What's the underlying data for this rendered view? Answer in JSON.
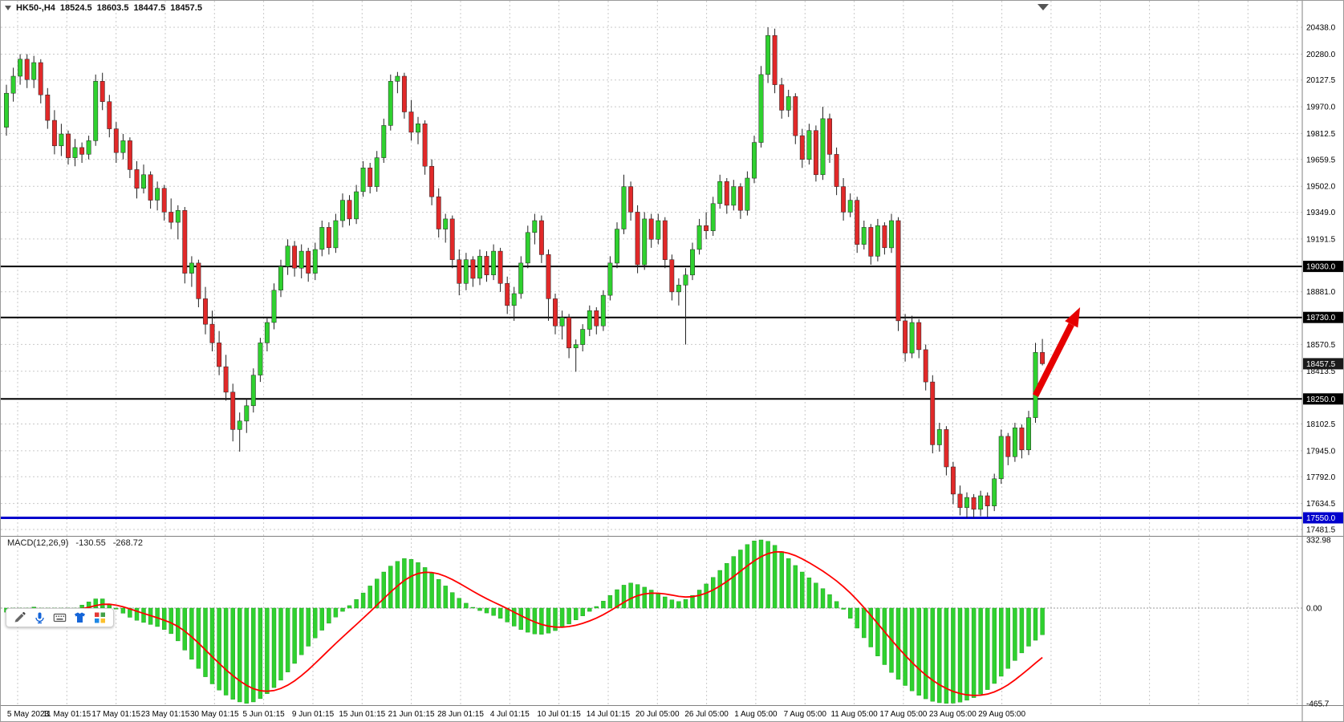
{
  "header": {
    "symbol": "HK50-,H4",
    "open": "18524.5",
    "high": "18603.5",
    "low": "18447.5",
    "close": "18457.5"
  },
  "macd_panel": {
    "label": "MACD(12,26,9)",
    "macd_value": "-130.55",
    "signal_value": "-268.72"
  },
  "toolbar": {
    "icons": [
      "pen-icon",
      "microphone-icon",
      "keyboard-icon",
      "shirt-icon",
      "apps-grid-icon"
    ]
  },
  "chart_data": {
    "type": "candlestick",
    "title": "HK50-,H4",
    "timeframe": "H4",
    "colors": {
      "up": "#2fd12f",
      "down": "#e12929",
      "macd_histogram": "#2fd12f",
      "macd_signal": "#ff0000",
      "level_black": "#000000",
      "level_blue": "#0000cc",
      "arrow": "#e60000",
      "grid": "#c9c9c9"
    },
    "price_axis": {
      "gridlines": [
        20438.0,
        20280.0,
        20127.5,
        19970.0,
        19812.5,
        19659.5,
        19502.0,
        19349.0,
        19191.5,
        18881.0,
        18570.5,
        18413.5,
        18102.5,
        17945.0,
        17792.0,
        17634.5,
        17481.5
      ],
      "tags": [
        {
          "value": 19030.0,
          "color": "#000000"
        },
        {
          "value": 18730.0,
          "color": "#000000"
        },
        {
          "value": 18457.5,
          "color": "#1a1a1a"
        },
        {
          "value": 18250.0,
          "color": "#000000"
        },
        {
          "value": 17550.0,
          "color": "#0000cc"
        }
      ]
    },
    "levels": [
      {
        "price": 19030,
        "color": "#000000",
        "width": 2
      },
      {
        "price": 18730,
        "color": "#000000",
        "width": 2
      },
      {
        "price": 18250,
        "color": "#000000",
        "width": 2
      },
      {
        "price": 17550,
        "color": "#0000cc",
        "width": 3
      }
    ],
    "x_labels": [
      "5 May 2023",
      "11 May 01:15",
      "17 May 01:15",
      "23 May 01:15",
      "30 May 01:15",
      "5 Jun 01:15",
      "9 Jun 01:15",
      "15 Jun 01:15",
      "21 Jun 01:15",
      "28 Jun 01:15",
      "4 Jul 01:15",
      "10 Jul 01:15",
      "14 Jul 01:15",
      "20 Jul 05:00",
      "26 Jul 05:00",
      "1 Aug 05:00",
      "7 Aug 05:00",
      "11 Aug 05:00",
      "17 Aug 05:00",
      "23 Aug 05:00",
      "29 Aug 05:00"
    ],
    "candles": [
      [
        19850,
        20100,
        19800,
        20050
      ],
      [
        20050,
        20200,
        20000,
        20150
      ],
      [
        20150,
        20280,
        20100,
        20250
      ],
      [
        20250,
        20280,
        20080,
        20130
      ],
      [
        20130,
        20270,
        20080,
        20230
      ],
      [
        20230,
        20250,
        19990,
        20040
      ],
      [
        20040,
        20080,
        19840,
        19890
      ],
      [
        19890,
        19950,
        19690,
        19740
      ],
      [
        19740,
        19870,
        19680,
        19810
      ],
      [
        19810,
        19830,
        19630,
        19670
      ],
      [
        19670,
        19780,
        19620,
        19730
      ],
      [
        19730,
        19760,
        19640,
        19690
      ],
      [
        19690,
        19800,
        19660,
        19770
      ],
      [
        19770,
        20160,
        19740,
        20120
      ],
      [
        20120,
        20170,
        19950,
        20000
      ],
      [
        20000,
        20040,
        19790,
        19840
      ],
      [
        19840,
        19880,
        19640,
        19700
      ],
      [
        19700,
        19810,
        19660,
        19770
      ],
      [
        19770,
        19790,
        19550,
        19600
      ],
      [
        19600,
        19650,
        19430,
        19490
      ],
      [
        19490,
        19630,
        19460,
        19570
      ],
      [
        19570,
        19590,
        19370,
        19420
      ],
      [
        19420,
        19530,
        19360,
        19490
      ],
      [
        19490,
        19510,
        19300,
        19350
      ],
      [
        19350,
        19430,
        19250,
        19290
      ],
      [
        19290,
        19390,
        19190,
        19360
      ],
      [
        19360,
        19380,
        18930,
        18990
      ],
      [
        18990,
        19090,
        18910,
        19050
      ],
      [
        19050,
        19070,
        18790,
        18840
      ],
      [
        18840,
        18910,
        18630,
        18690
      ],
      [
        18690,
        18770,
        18530,
        18580
      ],
      [
        18580,
        18650,
        18390,
        18440
      ],
      [
        18440,
        18510,
        18240,
        18290
      ],
      [
        18290,
        18340,
        18000,
        18070
      ],
      [
        18070,
        18170,
        17940,
        18120
      ],
      [
        18120,
        18250,
        18050,
        18210
      ],
      [
        18210,
        18430,
        18170,
        18390
      ],
      [
        18390,
        18610,
        18350,
        18580
      ],
      [
        18580,
        18730,
        18530,
        18700
      ],
      [
        18700,
        18930,
        18660,
        18890
      ],
      [
        18890,
        19070,
        18850,
        19030
      ],
      [
        19030,
        19190,
        18980,
        19150
      ],
      [
        19150,
        19180,
        18970,
        19020
      ],
      [
        19020,
        19160,
        18960,
        19120
      ],
      [
        19120,
        19140,
        18940,
        18990
      ],
      [
        18990,
        19170,
        18950,
        19130
      ],
      [
        19130,
        19300,
        19090,
        19260
      ],
      [
        19260,
        19290,
        19100,
        19140
      ],
      [
        19140,
        19340,
        19110,
        19300
      ],
      [
        19300,
        19460,
        19260,
        19420
      ],
      [
        19420,
        19450,
        19270,
        19310
      ],
      [
        19310,
        19510,
        19280,
        19470
      ],
      [
        19470,
        19650,
        19440,
        19610
      ],
      [
        19610,
        19640,
        19460,
        19500
      ],
      [
        19500,
        19710,
        19470,
        19670
      ],
      [
        19670,
        19900,
        19640,
        19860
      ],
      [
        19860,
        20160,
        19830,
        20120
      ],
      [
        20120,
        20175,
        20050,
        20150
      ],
      [
        20150,
        20170,
        19900,
        19940
      ],
      [
        19940,
        20010,
        19770,
        19820
      ],
      [
        19820,
        19910,
        19750,
        19870
      ],
      [
        19870,
        19890,
        19570,
        19620
      ],
      [
        19620,
        19660,
        19390,
        19440
      ],
      [
        19440,
        19490,
        19200,
        19250
      ],
      [
        19250,
        19340,
        19170,
        19310
      ],
      [
        19310,
        19330,
        19020,
        19070
      ],
      [
        19070,
        19130,
        18860,
        18930
      ],
      [
        18930,
        19110,
        18890,
        19070
      ],
      [
        19070,
        19090,
        18910,
        18960
      ],
      [
        18960,
        19130,
        18920,
        19090
      ],
      [
        19090,
        19120,
        18940,
        18980
      ],
      [
        18980,
        19160,
        18950,
        19120
      ],
      [
        19120,
        19140,
        18880,
        18930
      ],
      [
        18930,
        18970,
        18750,
        18800
      ],
      [
        18800,
        18910,
        18710,
        18870
      ],
      [
        18870,
        19090,
        18840,
        19050
      ],
      [
        19050,
        19270,
        19020,
        19230
      ],
      [
        19230,
        19340,
        19160,
        19300
      ],
      [
        19300,
        19330,
        19050,
        19100
      ],
      [
        19100,
        19130,
        18710,
        18840
      ],
      [
        18840,
        18870,
        18630,
        18680
      ],
      [
        18680,
        18770,
        18600,
        18730
      ],
      [
        18730,
        18750,
        18490,
        18550
      ],
      [
        18550,
        18600,
        18410,
        18570
      ],
      [
        18570,
        18690,
        18530,
        18660
      ],
      [
        18660,
        18800,
        18620,
        18770
      ],
      [
        18770,
        18790,
        18630,
        18680
      ],
      [
        18680,
        18890,
        18650,
        18860
      ],
      [
        18860,
        19090,
        18830,
        19050
      ],
      [
        19050,
        19290,
        19020,
        19250
      ],
      [
        19250,
        19570,
        19220,
        19500
      ],
      [
        19500,
        19530,
        19300,
        19350
      ],
      [
        19350,
        19390,
        18990,
        19040
      ],
      [
        19040,
        19350,
        19010,
        19310
      ],
      [
        19310,
        19340,
        19140,
        19190
      ],
      [
        19190,
        19340,
        19160,
        19300
      ],
      [
        19300,
        19320,
        19020,
        19070
      ],
      [
        19070,
        19100,
        18830,
        18880
      ],
      [
        18880,
        18960,
        18800,
        18920
      ],
      [
        18920,
        19020,
        18570,
        18980
      ],
      [
        18980,
        19170,
        18950,
        19130
      ],
      [
        19130,
        19310,
        19100,
        19270
      ],
      [
        19270,
        19350,
        19190,
        19240
      ],
      [
        19240,
        19440,
        19210,
        19400
      ],
      [
        19400,
        19570,
        19370,
        19530
      ],
      [
        19530,
        19550,
        19340,
        19390
      ],
      [
        19390,
        19540,
        19360,
        19500
      ],
      [
        19500,
        19520,
        19310,
        19360
      ],
      [
        19360,
        19590,
        19330,
        19550
      ],
      [
        19550,
        19800,
        19520,
        19760
      ],
      [
        19760,
        20210,
        19730,
        20160
      ],
      [
        20160,
        20438,
        20110,
        20390
      ],
      [
        20390,
        20430,
        20050,
        20100
      ],
      [
        20100,
        20140,
        19900,
        19950
      ],
      [
        19950,
        20070,
        19910,
        20030
      ],
      [
        20030,
        20050,
        19750,
        19800
      ],
      [
        19800,
        19840,
        19610,
        19660
      ],
      [
        19660,
        19870,
        19630,
        19830
      ],
      [
        19830,
        19860,
        19530,
        19570
      ],
      [
        19570,
        19970,
        19540,
        19900
      ],
      [
        19900,
        19930,
        19640,
        19690
      ],
      [
        19690,
        19730,
        19450,
        19500
      ],
      [
        19500,
        19550,
        19300,
        19350
      ],
      [
        19350,
        19460,
        19320,
        19420
      ],
      [
        19420,
        19440,
        19110,
        19160
      ],
      [
        19160,
        19300,
        19130,
        19260
      ],
      [
        19260,
        19280,
        19040,
        19090
      ],
      [
        19090,
        19310,
        19060,
        19270
      ],
      [
        19270,
        19290,
        19100,
        19140
      ],
      [
        19140,
        19340,
        19110,
        19300
      ],
      [
        19300,
        19320,
        18650,
        18710
      ],
      [
        18710,
        18750,
        18470,
        18520
      ],
      [
        18520,
        18740,
        18490,
        18700
      ],
      [
        18700,
        18720,
        18490,
        18540
      ],
      [
        18540,
        18570,
        18300,
        18350
      ],
      [
        18350,
        18390,
        17930,
        17980
      ],
      [
        17980,
        18110,
        17940,
        18070
      ],
      [
        18070,
        18090,
        17800,
        17850
      ],
      [
        17850,
        17880,
        17630,
        17690
      ],
      [
        17690,
        17740,
        17565,
        17610
      ],
      [
        17610,
        17700,
        17550,
        17670
      ],
      [
        17670,
        17690,
        17551,
        17600
      ],
      [
        17600,
        17710,
        17560,
        17680
      ],
      [
        17680,
        17700,
        17555,
        17620
      ],
      [
        17620,
        17810,
        17590,
        17780
      ],
      [
        17780,
        18070,
        17750,
        18030
      ],
      [
        18030,
        18050,
        17860,
        17910
      ],
      [
        17910,
        18110,
        17880,
        18080
      ],
      [
        18080,
        18100,
        17900,
        17950
      ],
      [
        17950,
        18180,
        17920,
        18140
      ],
      [
        18140,
        18580,
        18110,
        18524
      ],
      [
        18524.5,
        18603.5,
        18447.5,
        18457.5
      ]
    ],
    "macd": {
      "params": "12,26,9",
      "macd_value": -130.55,
      "signal_value": -268.72,
      "axis_labels": [
        {
          "text": "332.98",
          "value": 332.98
        },
        {
          "text": "0.00",
          "value": 0
        },
        {
          "text": "-465.7",
          "value": -465.7
        }
      ],
      "histogram": [
        -20,
        -10,
        -5,
        0,
        5,
        0,
        -5,
        -10,
        -15,
        -10,
        0,
        15,
        30,
        45,
        45,
        20,
        -5,
        -25,
        -45,
        -60,
        -70,
        -80,
        -90,
        -105,
        -125,
        -160,
        -205,
        -250,
        -295,
        -335,
        -370,
        -400,
        -425,
        -445,
        -458,
        -465,
        -458,
        -442,
        -418,
        -388,
        -352,
        -312,
        -270,
        -228,
        -186,
        -146,
        -108,
        -74,
        -44,
        -16,
        12,
        42,
        74,
        108,
        142,
        176,
        205,
        228,
        242,
        238,
        222,
        198,
        170,
        140,
        108,
        76,
        48,
        24,
        4,
        -12,
        -24,
        -36,
        -50,
        -68,
        -88,
        -105,
        -118,
        -126,
        -128,
        -122,
        -110,
        -95,
        -78,
        -58,
        -38,
        -16,
        8,
        34,
        62,
        90,
        112,
        122,
        115,
        102,
        88,
        72,
        55,
        40,
        32,
        42,
        62,
        88,
        118,
        150,
        184,
        218,
        252,
        284,
        310,
        328,
        333,
        326,
        306,
        276,
        242,
        208,
        176,
        148,
        122,
        95,
        66,
        32,
        -6,
        -50,
        -98,
        -145,
        -190,
        -234,
        -276,
        -314,
        -348,
        -378,
        -404,
        -426,
        -443,
        -455,
        -462,
        -465,
        -464,
        -459,
        -450,
        -437,
        -420,
        -398,
        -368,
        -333,
        -295,
        -256,
        -219,
        -186,
        -157,
        -130.55
      ]
    },
    "annotation_arrow": {
      "from": {
        "index": 150,
        "price": 18270
      },
      "to": {
        "index": 156.5,
        "price": 18790
      },
      "color": "#e60000"
    }
  }
}
